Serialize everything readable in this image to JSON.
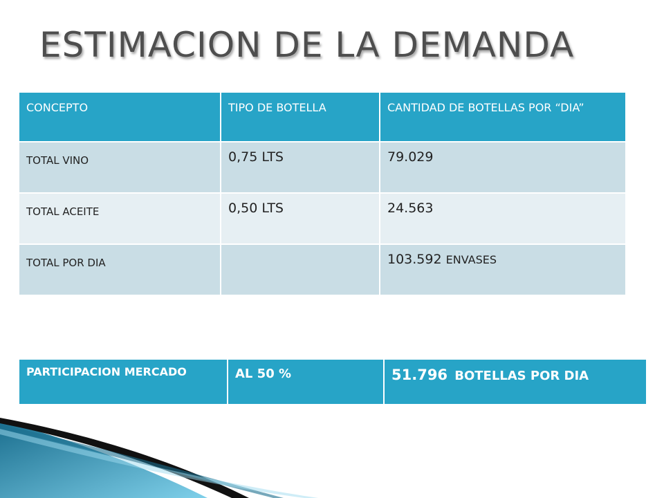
{
  "title": "ESTIMACION DE LA DEMANDA",
  "demand_table": {
    "headers": [
      "CONCEPTO",
      "TIPO DE BOTELLA",
      "CANTIDAD DE BOTELLAS POR “DIA”"
    ],
    "rows": [
      {
        "concept": "TOTAL VINO",
        "type": "0,75 LTS",
        "quantity": "79.029",
        "unit": ""
      },
      {
        "concept": "TOTAL ACEITE",
        "type": "0,50 LTS",
        "quantity": "24.563",
        "unit": ""
      },
      {
        "concept": "TOTAL POR DIA",
        "type": "",
        "quantity": "103.592",
        "unit": "ENVASES"
      }
    ]
  },
  "market_table": {
    "label": "PARTICIPACION MERCADO",
    "share": " AL 50 %",
    "quantity": "51.796",
    "unit": "BOTELLAS POR DIA"
  },
  "colors": {
    "header_blue": "#27a4c7",
    "row_light": "#c9dde5",
    "row_lighter": "#e6eff3",
    "title_gray": "#4e4e4e"
  }
}
